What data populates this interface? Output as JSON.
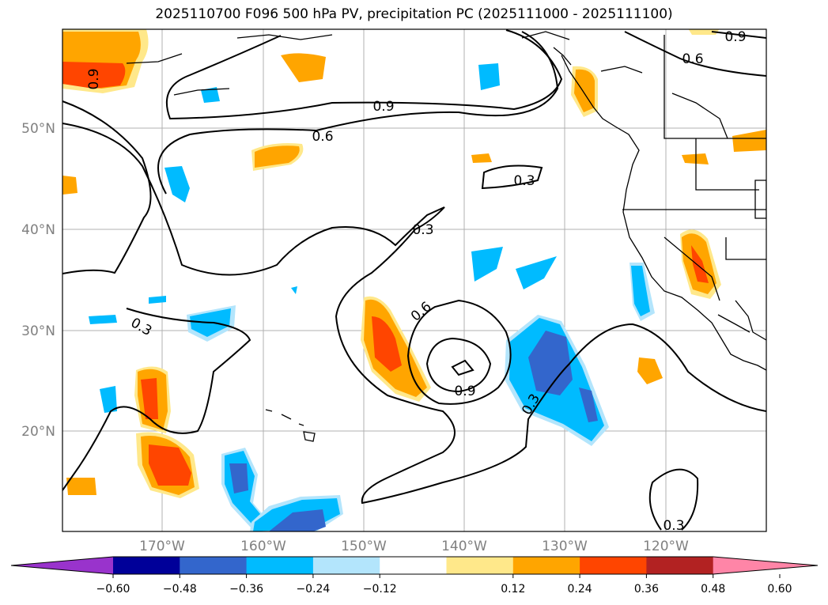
{
  "title": "2025110700 F096 500 hPa PV, precipitation PC (2025111000 - 2025111100)",
  "lat_labels": [
    "50°N",
    "40°N",
    "30°N",
    "20°N"
  ],
  "lon_labels": [
    "170°W",
    "160°W",
    "150°W",
    "140°W",
    "130°W",
    "120°W"
  ],
  "contour_labels": [
    "0.9",
    "0.6",
    "0.9",
    "0.6",
    "0.3",
    "0.3",
    "0.3",
    "0.6",
    "0.9",
    "0.3",
    "0.3",
    "0.9"
  ],
  "colorbar": {
    "colors": [
      "#9933cc",
      "#000099",
      "#3366cc",
      "#00bbff",
      "#b3e5fc",
      "#ffffff",
      "#ffe88a",
      "#ffa500",
      "#ff4500",
      "#b22222",
      "#ff85a7"
    ],
    "tick_labels": [
      "−0.60",
      "−0.48",
      "−0.36",
      "−0.24",
      "−0.12",
      "0.12",
      "0.24",
      "0.36",
      "0.48",
      "0.60"
    ]
  }
}
